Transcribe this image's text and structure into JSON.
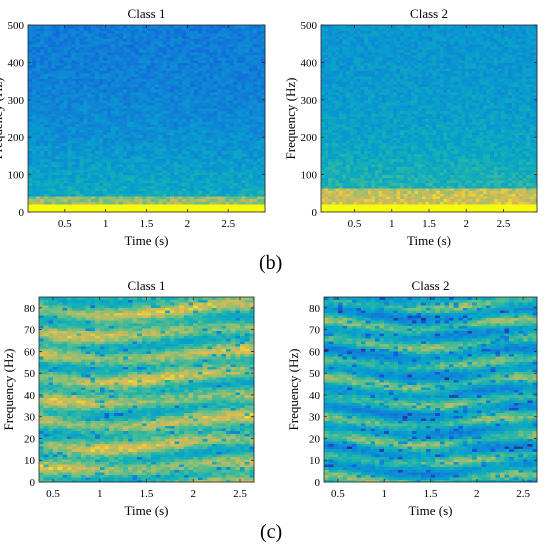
{
  "panel_labels": [
    "(b)",
    "(c)"
  ],
  "chart_data": [
    {
      "type": "heatmap",
      "panel": "b",
      "title": "Class 1",
      "xlabel": "Time (s)",
      "ylabel": "Frequency (Hz)",
      "xlim": [
        0.05,
        2.95
      ],
      "ylim": [
        0,
        500
      ],
      "xticks": [
        0.5,
        1,
        1.5,
        2,
        2.5
      ],
      "xtick_labels": [
        "0.5",
        "1",
        "1.5",
        "2",
        "2.5"
      ],
      "yticks": [
        0,
        100,
        200,
        300,
        400,
        500
      ],
      "ytick_labels": [
        "0",
        "100",
        "200",
        "300",
        "400",
        "500"
      ],
      "colormap": "parula",
      "pattern": "spectrogram-class1",
      "seed": 11
    },
    {
      "type": "heatmap",
      "panel": "b",
      "title": "Class 2",
      "xlabel": "Time (s)",
      "ylabel": "Frequency (Hz)",
      "xlim": [
        0.05,
        2.95
      ],
      "ylim": [
        0,
        500
      ],
      "xticks": [
        0.5,
        1,
        1.5,
        2,
        2.5
      ],
      "xtick_labels": [
        "0.5",
        "1",
        "1.5",
        "2",
        "2.5"
      ],
      "yticks": [
        0,
        100,
        200,
        300,
        400,
        500
      ],
      "ytick_labels": [
        "0",
        "100",
        "200",
        "300",
        "400",
        "500"
      ],
      "colormap": "parula",
      "pattern": "spectrogram-class2",
      "seed": 23
    },
    {
      "type": "heatmap",
      "panel": "c",
      "title": "Class 1",
      "xlabel": "Time (s)",
      "ylabel": "Frequency (Hz)",
      "xlim": [
        0.35,
        2.65
      ],
      "ylim": [
        0,
        85
      ],
      "xticks": [
        0.5,
        1,
        1.5,
        2,
        2.5
      ],
      "xtick_labels": [
        "0.5",
        "1",
        "1.5",
        "2",
        "2.5"
      ],
      "yticks": [
        0,
        10,
        20,
        30,
        40,
        50,
        60,
        70,
        80
      ],
      "ytick_labels": [
        "0",
        "10",
        "20",
        "30",
        "40",
        "50",
        "60",
        "70",
        "80"
      ],
      "colormap": "parula",
      "pattern": "streaks-class1",
      "seed": 37
    },
    {
      "type": "heatmap",
      "panel": "c",
      "title": "Class 2",
      "xlabel": "Time (s)",
      "ylabel": "Frequency (Hz)",
      "xlim": [
        0.35,
        2.65
      ],
      "ylim": [
        0,
        85
      ],
      "xticks": [
        0.5,
        1,
        1.5,
        2,
        2.5
      ],
      "xtick_labels": [
        "0.5",
        "1",
        "1.5",
        "2",
        "2.5"
      ],
      "yticks": [
        0,
        10,
        20,
        30,
        40,
        50,
        60,
        70,
        80
      ],
      "ytick_labels": [
        "0",
        "10",
        "20",
        "30",
        "40",
        "50",
        "60",
        "70",
        "80"
      ],
      "colormap": "parula",
      "pattern": "streaks-class2",
      "seed": 53
    }
  ]
}
